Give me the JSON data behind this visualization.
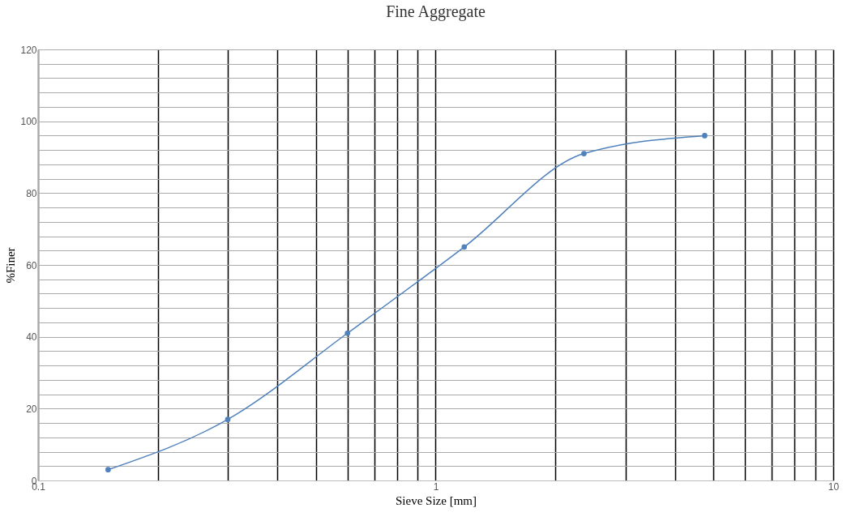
{
  "chart_data": {
    "type": "line",
    "title": "Fine Aggregate",
    "xlabel": "Sieve Size [mm]",
    "ylabel": "%Finer",
    "x": [
      0.15,
      0.3,
      0.6,
      1.18,
      2.36,
      4.75
    ],
    "series": [
      {
        "color": "#4f81bd",
        "values": [
          3,
          17,
          41,
          65,
          91,
          96
        ]
      }
    ],
    "log": "x",
    "xlim": [
      0.1,
      10
    ],
    "xticks": [
      0.1,
      {
        "value": 0.2,
        "label": null
      },
      {
        "value": 0.3,
        "label": null
      },
      {
        "value": 0.4,
        "label": null
      },
      {
        "value": 0.5,
        "label": null
      },
      {
        "value": 0.6,
        "label": null
      },
      {
        "value": 0.7,
        "label": null
      },
      {
        "value": 0.8,
        "label": null
      },
      {
        "value": 0.9,
        "label": null
      },
      1,
      {
        "value": 2,
        "label": null
      },
      {
        "value": 3,
        "label": null
      },
      {
        "value": 4,
        "label": null
      },
      {
        "value": 5,
        "label": null
      },
      {
        "value": 6,
        "label": null
      },
      {
        "value": 7,
        "label": null
      },
      {
        "value": 8,
        "label": null
      },
      {
        "value": 9,
        "label": null
      },
      10
    ],
    "ylim": [
      0,
      120
    ],
    "yticks": [
      0,
      {
        "value": 4,
        "label": null
      },
      {
        "value": 8,
        "label": null
      },
      {
        "value": 12,
        "label": null
      },
      {
        "value": 16,
        "label": null
      },
      20,
      {
        "value": 24,
        "label": null
      },
      {
        "value": 28,
        "label": null
      },
      {
        "value": 32,
        "label": null
      },
      {
        "value": 36,
        "label": null
      },
      40,
      {
        "value": 44,
        "label": null
      },
      {
        "value": 48,
        "label": null
      },
      {
        "value": 52,
        "label": null
      },
      {
        "value": 56,
        "label": null
      },
      60,
      {
        "value": 64,
        "label": null
      },
      {
        "value": 68,
        "label": null
      },
      {
        "value": 72,
        "label": null
      },
      {
        "value": 76,
        "label": null
      },
      80,
      {
        "value": 84,
        "label": null
      },
      {
        "value": 88,
        "label": null
      },
      {
        "value": 92,
        "label": null
      },
      {
        "value": 96,
        "label": null
      },
      100,
      {
        "value": 104,
        "label": null
      },
      {
        "value": 108,
        "label": null
      },
      {
        "value": 112,
        "label": null
      },
      {
        "value": 116,
        "label": null
      },
      120
    ],
    "grid": true,
    "marker": "circle",
    "line_style": "solid"
  }
}
